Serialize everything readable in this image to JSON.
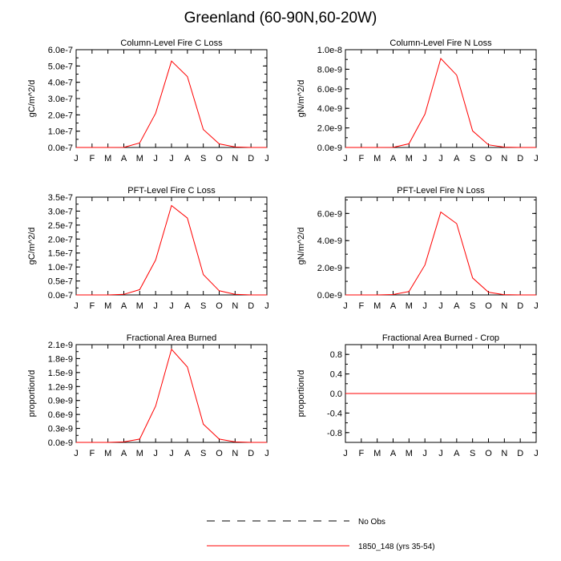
{
  "figure": {
    "title": "Greenland (60-90N,60-20W)",
    "legend": [
      {
        "label": "No Obs",
        "style": "dashed",
        "color": "#000000"
      },
      {
        "label": "1850_148 (yrs 35-54)",
        "style": "solid",
        "color": "#ff0000"
      }
    ]
  },
  "chart_data": [
    {
      "type": "line",
      "title": "Column-Level Fire C Loss",
      "ylabel": "gC/m^2/d",
      "categories": [
        "J",
        "F",
        "M",
        "A",
        "M",
        "J",
        "J",
        "A",
        "S",
        "O",
        "N",
        "D",
        "J"
      ],
      "yticks": [
        "0.0e-7",
        "1.0e-7",
        "2.0e-7",
        "3.0e-7",
        "4.0e-7",
        "5.0e-7",
        "6.0e-7"
      ],
      "ylim": [
        0,
        6e-07
      ],
      "series": [
        {
          "name": "1850_148 (yrs 35-54)",
          "color": "#ff0000",
          "values": [
            0,
            0,
            0,
            3e-10,
            2.8e-08,
            2.1e-07,
            5.3e-07,
            4.35e-07,
            1.1e-07,
            2.2e-08,
            3e-09,
            0,
            0
          ]
        }
      ]
    },
    {
      "type": "line",
      "title": "Column-Level Fire N Loss",
      "ylabel": "gN/m^2/d",
      "categories": [
        "J",
        "F",
        "M",
        "A",
        "M",
        "J",
        "J",
        "A",
        "S",
        "O",
        "N",
        "D",
        "J"
      ],
      "yticks": [
        "0.0e-9",
        "2.0e-9",
        "4.0e-9",
        "6.0e-9",
        "8.0e-9",
        "1.0e-8"
      ],
      "ylim": [
        0,
        1e-08
      ],
      "series": [
        {
          "name": "1850_148 (yrs 35-54)",
          "color": "#ff0000",
          "values": [
            0,
            0,
            0,
            1e-11,
            3.8e-10,
            3.4e-09,
            9.1e-09,
            7.4e-09,
            1.7e-09,
            2.7e-10,
            3e-11,
            0,
            0
          ]
        }
      ]
    },
    {
      "type": "line",
      "title": "PFT-Level Fire C Loss",
      "ylabel": "gC/m^2/d",
      "categories": [
        "J",
        "F",
        "M",
        "A",
        "M",
        "J",
        "J",
        "A",
        "S",
        "O",
        "N",
        "D",
        "J"
      ],
      "yticks": [
        "0.0e-7",
        "0.5e-7",
        "1.0e-7",
        "1.5e-7",
        "2.0e-7",
        "2.5e-7",
        "3.0e-7",
        "3.5e-7"
      ],
      "ylim": [
        0,
        3.5e-07
      ],
      "series": [
        {
          "name": "1850_148 (yrs 35-54)",
          "color": "#ff0000",
          "values": [
            0,
            0,
            0,
            2e-09,
            1.9e-08,
            1.25e-07,
            3.2e-07,
            2.75e-07,
            7.3e-08,
            1.5e-08,
            2e-09,
            0,
            0
          ]
        }
      ]
    },
    {
      "type": "line",
      "title": "PFT-Level Fire N Loss",
      "ylabel": "gN/m^2/d",
      "categories": [
        "J",
        "F",
        "M",
        "A",
        "M",
        "J",
        "J",
        "A",
        "S",
        "O",
        "N",
        "D",
        "J"
      ],
      "yticks": [
        "0.0e-9",
        "2.0e-9",
        "4.0e-9",
        "6.0e-9"
      ],
      "ylim": [
        0,
        7.2e-09
      ],
      "series": [
        {
          "name": "1850_148 (yrs 35-54)",
          "color": "#ff0000",
          "values": [
            0,
            0,
            0,
            3e-11,
            2.5e-10,
            2.2e-09,
            6.1e-09,
            5.25e-09,
            1.25e-09,
            2e-10,
            2e-11,
            0,
            0
          ]
        }
      ]
    },
    {
      "type": "line",
      "title": "Fractional Area Burned",
      "ylabel": "proportion/d",
      "categories": [
        "J",
        "F",
        "M",
        "A",
        "M",
        "J",
        "J",
        "A",
        "S",
        "O",
        "N",
        "D",
        "J"
      ],
      "yticks": [
        "0.0e-9",
        "0.3e-9",
        "0.6e-9",
        "0.9e-9",
        "1.2e-9",
        "1.5e-9",
        "1.8e-9",
        "2.1e-9"
      ],
      "ylim": [
        0,
        2.1e-09
      ],
      "series": [
        {
          "name": "1850_148 (yrs 35-54)",
          "color": "#ff0000",
          "values": [
            0,
            0,
            0,
            1e-11,
            7e-11,
            7.8e-10,
            2e-09,
            1.62e-09,
            3.9e-10,
            7e-11,
            1e-11,
            0,
            0
          ]
        }
      ]
    },
    {
      "type": "line",
      "title": "Fractional Area Burned - Crop",
      "ylabel": "proportion/d",
      "categories": [
        "J",
        "F",
        "M",
        "A",
        "M",
        "J",
        "J",
        "A",
        "S",
        "O",
        "N",
        "D",
        "J"
      ],
      "yticks": [
        "-0.8",
        "-0.4",
        "0.0",
        "0.4",
        "0.8"
      ],
      "ylim": [
        -1.0,
        1.0
      ],
      "series": [
        {
          "name": "1850_148 (yrs 35-54)",
          "color": "#ff0000",
          "values": [
            0,
            0,
            0,
            0,
            0,
            0,
            0,
            0,
            0,
            0,
            0,
            0,
            0
          ]
        }
      ]
    }
  ]
}
